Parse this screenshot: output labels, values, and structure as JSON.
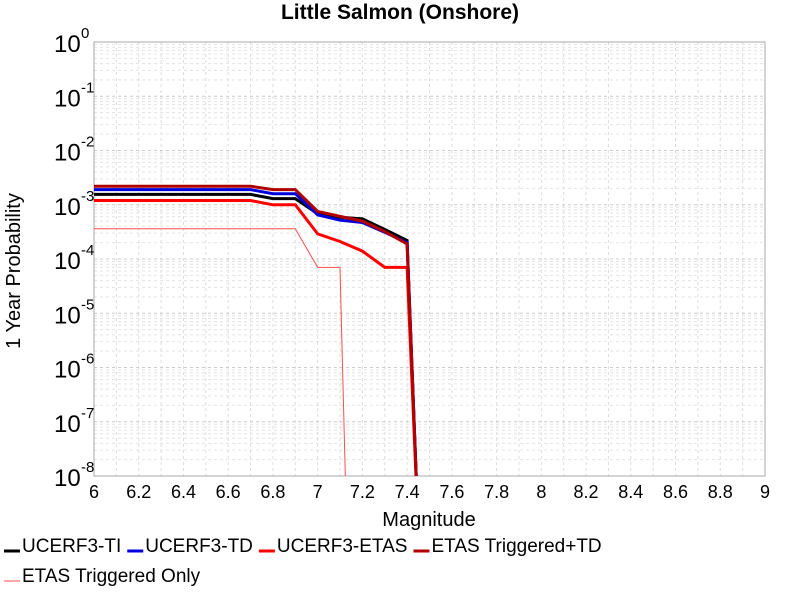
{
  "chart_data": {
    "type": "line",
    "title": "Little Salmon (Onshore)",
    "xlabel": "Magnitude",
    "ylabel": "1 Year Probability",
    "xlim": [
      6,
      9
    ],
    "ylim": [
      1e-08,
      1
    ],
    "y_scale": "log",
    "grid": true,
    "x_ticks": [
      "6",
      "6.2",
      "6.4",
      "6.6",
      "6.8",
      "7",
      "7.2",
      "7.4",
      "7.6",
      "7.8",
      "8",
      "8.2",
      "8.4",
      "8.6",
      "8.8",
      "9"
    ],
    "y_ticks": [
      {
        "base": "10",
        "exp": "0"
      },
      {
        "base": "10",
        "exp": "-1"
      },
      {
        "base": "10",
        "exp": "-2"
      },
      {
        "base": "10",
        "exp": "-3"
      },
      {
        "base": "10",
        "exp": "-4"
      },
      {
        "base": "10",
        "exp": "-5"
      },
      {
        "base": "10",
        "exp": "-6"
      },
      {
        "base": "10",
        "exp": "-7"
      },
      {
        "base": "10",
        "exp": "-8"
      }
    ],
    "legend_position": "bottom",
    "series": [
      {
        "name": "UCERF3-TI",
        "color": "#000000",
        "width": 3,
        "x": [
          6.0,
          6.7,
          6.8,
          6.9,
          7.0,
          7.1,
          7.2,
          7.3,
          7.4,
          7.45
        ],
        "y": [
          0.00155,
          0.00155,
          0.0013,
          0.0013,
          0.00068,
          0.00059,
          0.00055,
          0.00035,
          0.00022,
          1e-09
        ]
      },
      {
        "name": "UCERF3-TD",
        "color": "#0000dd",
        "width": 3,
        "x": [
          6.0,
          6.7,
          6.8,
          6.9,
          7.0,
          7.1,
          7.2,
          7.3,
          7.4,
          7.45
        ],
        "y": [
          0.0019,
          0.0019,
          0.0016,
          0.0016,
          0.00065,
          0.00052,
          0.00047,
          0.00031,
          0.0002,
          1e-09
        ]
      },
      {
        "name": "UCERF3-ETAS",
        "color": "#ff0000",
        "width": 3,
        "x": [
          6.0,
          6.7,
          6.8,
          6.9,
          7.0,
          7.1,
          7.2,
          7.3,
          7.4,
          7.45
        ],
        "y": [
          0.0012,
          0.0012,
          0.001,
          0.001,
          0.00029,
          0.00021,
          0.00014,
          7e-05,
          7e-05,
          1e-09
        ]
      },
      {
        "name": "ETAS Triggered+TD",
        "color": "#b00000",
        "width": 3,
        "x": [
          6.0,
          6.7,
          6.8,
          6.9,
          7.0,
          7.1,
          7.2,
          7.3,
          7.4,
          7.45
        ],
        "y": [
          0.0022,
          0.0022,
          0.0019,
          0.0019,
          0.00075,
          0.00061,
          0.0005,
          0.00032,
          0.00019,
          1e-09
        ]
      },
      {
        "name": "ETAS Triggered Only",
        "color": "#ff4d4d",
        "width": 1,
        "x": [
          6.0,
          6.9,
          7.0,
          7.1,
          7.13
        ],
        "y": [
          0.00036,
          0.00036,
          7e-05,
          7e-05,
          1e-09
        ]
      }
    ]
  }
}
